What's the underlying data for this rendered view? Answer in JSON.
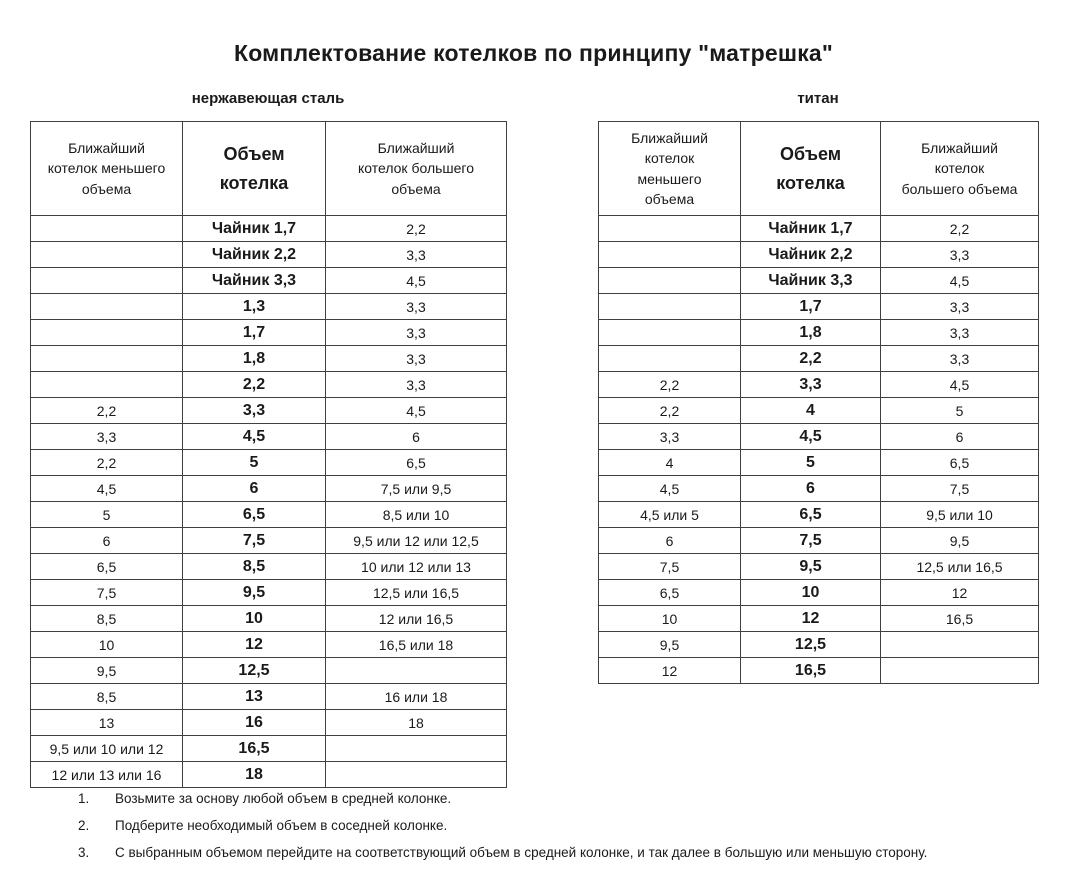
{
  "title": "Комплектование котелков по принципу \"матрешка\"",
  "tables": [
    {
      "subtitle": "нержавеющая сталь",
      "headers": [
        "Ближайший\nкотелок меньшего\nобъема",
        "Объем\nкотелка",
        "Ближайший\nкотелок  большего\nобъема"
      ],
      "rows": [
        [
          "",
          "Чайник 1,7",
          "2,2"
        ],
        [
          "",
          "Чайник 2,2",
          "3,3"
        ],
        [
          "",
          "Чайник 3,3",
          "4,5"
        ],
        [
          "",
          "1,3",
          "3,3"
        ],
        [
          "",
          "1,7",
          "3,3"
        ],
        [
          "",
          "1,8",
          "3,3"
        ],
        [
          "",
          "2,2",
          "3,3"
        ],
        [
          "2,2",
          "3,3",
          "4,5"
        ],
        [
          "3,3",
          "4,5",
          "6"
        ],
        [
          "2,2",
          "5",
          "6,5"
        ],
        [
          "4,5",
          "6",
          "7,5 или 9,5"
        ],
        [
          "5",
          "6,5",
          "8,5 или 10"
        ],
        [
          "6",
          "7,5",
          "9,5 или 12 или 12,5"
        ],
        [
          "6,5",
          "8,5",
          "10 или 12 или 13"
        ],
        [
          "7,5",
          "9,5",
          "12,5 или 16,5"
        ],
        [
          "8,5",
          "10",
          "12 или 16,5"
        ],
        [
          "10",
          "12",
          "16,5 или 18"
        ],
        [
          "9,5",
          "12,5",
          ""
        ],
        [
          "8,5",
          "13",
          "16 или 18"
        ],
        [
          "13",
          "16",
          "18"
        ],
        [
          "9,5 или 10 или 12",
          "16,5",
          ""
        ],
        [
          "12 или 13 или 16",
          "18",
          ""
        ]
      ]
    },
    {
      "subtitle": "титан",
      "headers": [
        "Ближайший\nкотелок\nменьшего\nобъема",
        "Объем\nкотелка",
        "Ближайший\nкотелок\nбольшего объема"
      ],
      "rows": [
        [
          "",
          "Чайник 1,7",
          "2,2"
        ],
        [
          "",
          "Чайник 2,2",
          "3,3"
        ],
        [
          "",
          "Чайник 3,3",
          "4,5"
        ],
        [
          "",
          "1,7",
          "3,3"
        ],
        [
          "",
          "1,8",
          "3,3"
        ],
        [
          "",
          "2,2",
          "3,3"
        ],
        [
          "2,2",
          "3,3",
          "4,5"
        ],
        [
          "2,2",
          "4",
          "5"
        ],
        [
          "3,3",
          "4,5",
          "6"
        ],
        [
          "4",
          "5",
          "6,5"
        ],
        [
          "4,5",
          "6",
          "7,5"
        ],
        [
          "4,5 или 5",
          "6,5",
          "9,5 или 10"
        ],
        [
          "6",
          "7,5",
          "9,5"
        ],
        [
          "7,5",
          "9,5",
          "12,5 или 16,5"
        ],
        [
          "6,5",
          "10",
          "12"
        ],
        [
          "10",
          "12",
          "16,5"
        ],
        [
          "9,5",
          "12,5",
          ""
        ],
        [
          "12",
          "16,5",
          ""
        ]
      ]
    }
  ],
  "notes": [
    {
      "num": "1.",
      "text": "Возьмите за основу любой объем в средней колонке."
    },
    {
      "num": "2.",
      "text": "Подберите необходимый объем в соседней колонке."
    },
    {
      "num": "3.",
      "text": "С выбранным объемом перейдите на соответствующий объем в средней колонке, и так далее в большую или меньшую сторону."
    }
  ]
}
